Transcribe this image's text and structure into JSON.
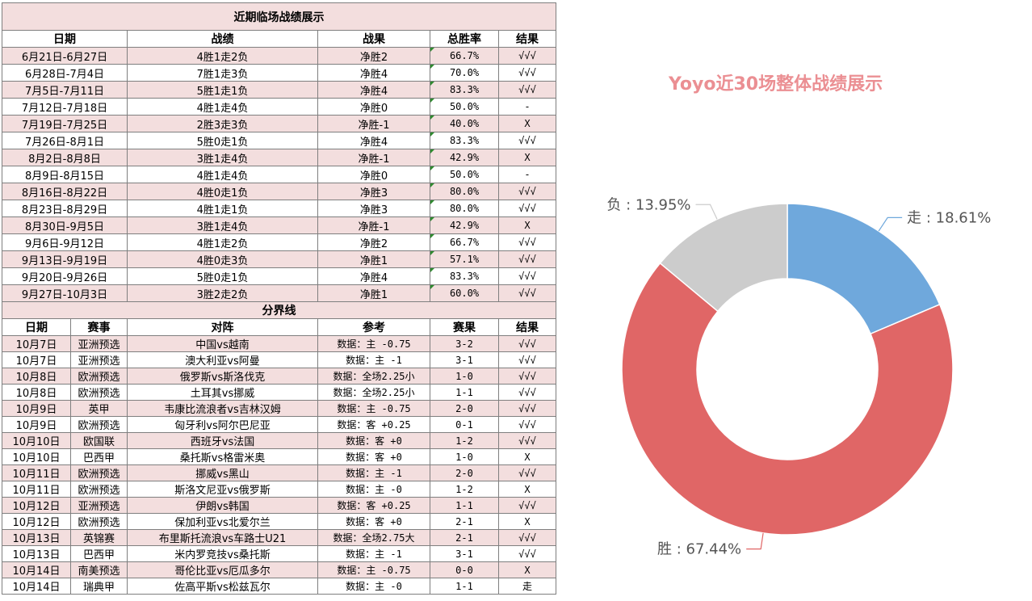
{
  "table": {
    "title": "近期临场战绩展示",
    "weekly_headers": [
      "日期",
      "战绩",
      "战果",
      "总胜率",
      "结果"
    ],
    "weekly_rows": [
      {
        "date": "6月21日-6月27日",
        "record": "4胜1走2负",
        "net": "净胜2",
        "rate": "66.7%",
        "result": "√√√"
      },
      {
        "date": "6月28日-7月4日",
        "record": "7胜1走3负",
        "net": "净胜4",
        "rate": "70.0%",
        "result": "√√√"
      },
      {
        "date": "7月5日-7月11日",
        "record": "5胜1走1负",
        "net": "净胜4",
        "rate": "83.3%",
        "result": "√√√"
      },
      {
        "date": "7月12日-7月18日",
        "record": "4胜1走4负",
        "net": "净胜0",
        "rate": "50.0%",
        "result": "-"
      },
      {
        "date": "7月19日-7月25日",
        "record": "2胜3走3负",
        "net": "净胜-1",
        "rate": "40.0%",
        "result": "X"
      },
      {
        "date": "7月26日-8月1日",
        "record": "5胜0走1负",
        "net": "净胜4",
        "rate": "83.3%",
        "result": "√√√"
      },
      {
        "date": "8月2日-8月8日",
        "record": "3胜1走4负",
        "net": "净胜-1",
        "rate": "42.9%",
        "result": "X"
      },
      {
        "date": "8月9日-8月15日",
        "record": "4胜1走4负",
        "net": "净胜0",
        "rate": "50.0%",
        "result": "-"
      },
      {
        "date": "8月16日-8月22日",
        "record": "4胜0走1负",
        "net": "净胜3",
        "rate": "80.0%",
        "result": "√√√"
      },
      {
        "date": "8月23日-8月29日",
        "record": "4胜1走1负",
        "net": "净胜3",
        "rate": "80.0%",
        "result": "√√√"
      },
      {
        "date": "8月30日-9月5日",
        "record": "3胜1走4负",
        "net": "净胜-1",
        "rate": "42.9%",
        "result": "X"
      },
      {
        "date": "9月6日-9月12日",
        "record": "4胜1走2负",
        "net": "净胜2",
        "rate": "66.7%",
        "result": "√√√"
      },
      {
        "date": "9月13日-9月19日",
        "record": "4胜0走3负",
        "net": "净胜1",
        "rate": "57.1%",
        "result": "√√√"
      },
      {
        "date": "9月20日-9月26日",
        "record": "5胜0走1负",
        "net": "净胜4",
        "rate": "83.3%",
        "result": "√√√"
      },
      {
        "date": "9月27日-10月3日",
        "record": "3胜2走2负",
        "net": "净胜1",
        "rate": "60.0%",
        "result": "√√√"
      }
    ],
    "divider": "分界线",
    "match_headers": [
      "日期",
      "赛事",
      "对阵",
      "参考",
      "赛果",
      "结果"
    ],
    "match_rows": [
      {
        "date": "10月7日",
        "league": "亚洲预选",
        "match": "中国vs越南",
        "ref": "数据：主 -0.75",
        "score": "3-2",
        "result": "√√√"
      },
      {
        "date": "10月7日",
        "league": "亚洲预选",
        "match": "澳大利亚vs阿曼",
        "ref": "数据：主 -1",
        "score": "3-1",
        "result": "√√√"
      },
      {
        "date": "10月8日",
        "league": "欧洲预选",
        "match": "俄罗斯vs斯洛伐克",
        "ref": "数据：全场2.25小",
        "score": "1-0",
        "result": "√√√"
      },
      {
        "date": "10月8日",
        "league": "欧洲预选",
        "match": "土耳其vs挪威",
        "ref": "数据：全场2.25小",
        "score": "1-1",
        "result": "√√√"
      },
      {
        "date": "10月9日",
        "league": "英甲",
        "match": "韦康比流浪者vs吉林汉姆",
        "ref": "数据：主 -0.75",
        "score": "2-0",
        "result": "√√√"
      },
      {
        "date": "10月9日",
        "league": "欧洲预选",
        "match": "匈牙利vs阿尔巴尼亚",
        "ref": "数据：客 +0.25",
        "score": "0-1",
        "result": "√√√"
      },
      {
        "date": "10月10日",
        "league": "欧国联",
        "match": "西班牙vs法国",
        "ref": "数据：客 +0",
        "score": "1-2",
        "result": "√√√"
      },
      {
        "date": "10月10日",
        "league": "巴西甲",
        "match": "桑托斯vs格雷米奥",
        "ref": "数据：客 +0",
        "score": "1-0",
        "result": "X"
      },
      {
        "date": "10月11日",
        "league": "欧洲预选",
        "match": "挪威vs黑山",
        "ref": "数据：主 -1",
        "score": "2-0",
        "result": "√√√"
      },
      {
        "date": "10月11日",
        "league": "欧洲预选",
        "match": "斯洛文尼亚vs俄罗斯",
        "ref": "数据：主 -0",
        "score": "1-2",
        "result": "X"
      },
      {
        "date": "10月12日",
        "league": "亚洲预选",
        "match": "伊朗vs韩国",
        "ref": "数据：客 +0.25",
        "score": "1-1",
        "result": "√√√"
      },
      {
        "date": "10月12日",
        "league": "欧洲预选",
        "match": "保加利亚vs北爱尔兰",
        "ref": "数据：客 +0",
        "score": "2-1",
        "result": "X"
      },
      {
        "date": "10月13日",
        "league": "英锦赛",
        "match": "布里斯托流浪vs车路士U21",
        "ref": "数据：全场2.75大",
        "score": "2-1",
        "result": "√√√"
      },
      {
        "date": "10月13日",
        "league": "巴西甲",
        "match": "米内罗竞技vs桑托斯",
        "ref": "数据：主 -1",
        "score": "3-1",
        "result": "√√√"
      },
      {
        "date": "10月14日",
        "league": "南美预选",
        "match": "哥伦比亚vs厄瓜多尔",
        "ref": "数据：主 -0.75",
        "score": "0-0",
        "result": "X"
      },
      {
        "date": "10月14日",
        "league": "瑞典甲",
        "match": "佐高平斯vs松兹瓦尔",
        "ref": "数据：主 -0",
        "score": "1-1",
        "result": "走"
      }
    ]
  },
  "chart_data": {
    "type": "pie",
    "variant": "donut",
    "title": "Yoyo近30场整体战绩展示",
    "title_color": "#eb8f93",
    "slices": [
      {
        "label": "走",
        "value": 18.61,
        "text": "走 : 18.61%",
        "color": "#6fa8dc"
      },
      {
        "label": "胜",
        "value": 67.44,
        "text": "胜 : 67.44%",
        "color": "#e06666"
      },
      {
        "label": "负",
        "value": 13.95,
        "text": "负 : 13.95%",
        "color": "#cccccc"
      }
    ]
  }
}
